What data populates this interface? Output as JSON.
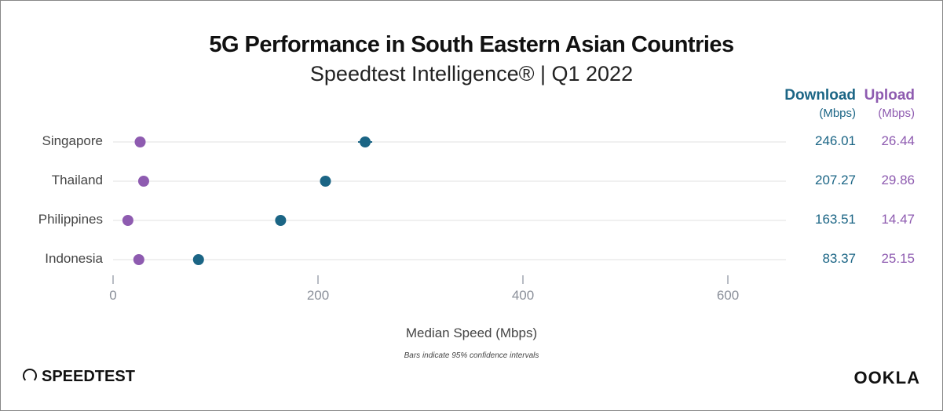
{
  "title": "5G Performance in South Eastern Asian Countries",
  "subtitle": "Speedtest Intelligence® | Q1 2022",
  "colors": {
    "download": "#1b6585",
    "upload": "#8e5bb0",
    "grid": "#ececec",
    "axis": "#b8bcc4"
  },
  "table": {
    "download_header": "Download",
    "download_unit": "(Mbps)",
    "upload_header": "Upload",
    "upload_unit": "(Mbps)"
  },
  "footer": {
    "note": "Bars indicate 95% confidence intervals",
    "speedtest_logo": "SPEEDTEST",
    "ookla_logo": "OOKLA"
  },
  "chart_data": {
    "type": "scatter",
    "title": "5G Performance in South Eastern Asian Countries",
    "subtitle": "Speedtest Intelligence® | Q1 2022",
    "xlabel": "Median Speed (Mbps)",
    "xlim": [
      0,
      655
    ],
    "xticks": [
      "0",
      "200",
      "400",
      "600"
    ],
    "grid": true,
    "categories": [
      "Singapore",
      "Thailand",
      "Philippines",
      "Indonesia"
    ],
    "series": [
      {
        "name": "Download",
        "values": [
          246.01,
          207.27,
          163.51,
          83.37
        ],
        "labels": [
          "246.01",
          "207.27",
          "163.51",
          "83.37"
        ]
      },
      {
        "name": "Upload",
        "values": [
          26.44,
          29.86,
          14.47,
          25.15
        ],
        "labels": [
          "26.44",
          "29.86",
          "14.47",
          "25.15"
        ]
      }
    ]
  }
}
